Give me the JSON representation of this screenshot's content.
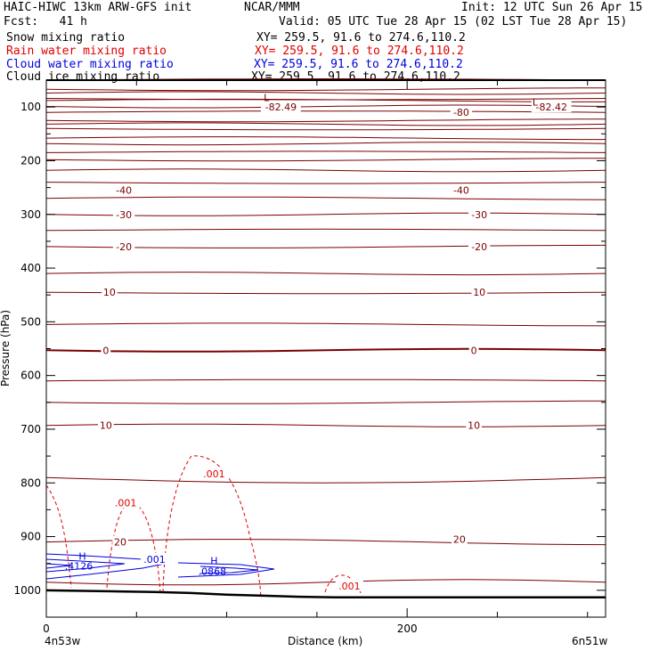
{
  "header": {
    "title_left": "HAIC-HIWC 13km ARW-GFS init",
    "org": "NCAR/MMM",
    "init": "Init: 12 UTC Sun 26 Apr 15",
    "fcst": "Fcst:   41 h",
    "valid": "Valid: 05 UTC Tue 28 Apr 15 (02 LST Tue 28 Apr 15)"
  },
  "fields": [
    {
      "name": "Snow mixing ratio",
      "xy": "XY= 259.5, 91.6 to 274.6,110.2",
      "color": "#000000"
    },
    {
      "name": "Rain water mixing ratio",
      "xy": "XY= 259.5, 91.6 to 274.6,110.2",
      "color": "#e00000"
    },
    {
      "name": "Cloud water mixing ratio",
      "xy": "XY= 259.5, 91.6 to 274.6,110.2",
      "color": "#0000e0"
    },
    {
      "name": "Cloud ice mixing ratio",
      "xy": "XY= 259.5, 91.6 to 274.6,110.2",
      "color": "#000000"
    }
  ],
  "colors": {
    "temperature": "#7a0000",
    "rain": "#e00000",
    "cloud_water": "#0000e0",
    "terrain": "#000000"
  },
  "chart_data": {
    "type": "line",
    "xlabel": "Distance (km)",
    "ylabel": "Pressure (hPa)",
    "xlim": [
      0,
      310
    ],
    "ylim": [
      1050,
      50
    ],
    "x_ticks": [
      0,
      200
    ],
    "y_ticks": [
      100,
      200,
      300,
      400,
      500,
      600,
      700,
      800,
      900,
      1000
    ],
    "left_endpoint": "4n53w",
    "right_endpoint": "6n51w",
    "isotherm_levels": [
      50,
      67,
      74,
      84,
      88,
      99,
      110,
      125,
      132,
      140,
      158,
      168,
      185,
      198,
      218,
      240,
      270,
      300,
      330,
      360,
      410,
      445,
      505,
      553,
      610,
      650,
      693,
      790,
      910,
      985
    ],
    "isotherm_labels": [
      {
        "text": "-82.49",
        "x": 130,
        "p": 100
      },
      {
        "text": "-80",
        "x": 230,
        "p": 110
      },
      {
        "text": "-82.42",
        "x": 280,
        "p": 100
      },
      {
        "text": "-40",
        "x": 43,
        "p": 255
      },
      {
        "text": "-40",
        "x": 230,
        "p": 255
      },
      {
        "text": "-30",
        "x": 43,
        "p": 300
      },
      {
        "text": "-30",
        "x": 240,
        "p": 300
      },
      {
        "text": "-20",
        "x": 43,
        "p": 360
      },
      {
        "text": "-20",
        "x": 240,
        "p": 360
      },
      {
        "text": "10",
        "x": 35,
        "p": 445
      },
      {
        "text": "10",
        "x": 240,
        "p": 445
      },
      {
        "text": "0",
        "x": 33,
        "p": 553
      },
      {
        "text": "0",
        "x": 237,
        "p": 553
      },
      {
        "text": "10",
        "x": 33,
        "p": 693
      },
      {
        "text": "10",
        "x": 237,
        "p": 693
      },
      {
        "text": "20",
        "x": 41,
        "p": 910
      },
      {
        "text": "20",
        "x": 229,
        "p": 905
      }
    ],
    "extrema_labels": [
      {
        "text": "L",
        "x": 122,
        "p": 82,
        "field": "temperature"
      },
      {
        "text": "L",
        "x": 271,
        "p": 91,
        "field": "temperature"
      },
      {
        "text": "H",
        "x": 20,
        "p": 936,
        "field": "cloud_water"
      },
      {
        "text": ".4126",
        "x": 18,
        "p": 955,
        "field": "cloud_water"
      },
      {
        "text": "H",
        "x": 93,
        "p": 945,
        "field": "cloud_water"
      },
      {
        "text": ".0868",
        "x": 92,
        "p": 965,
        "field": "cloud_water"
      }
    ],
    "rain_labels": [
      {
        "text": ".001",
        "x": 93,
        "p": 783
      },
      {
        "text": ".001",
        "x": 44,
        "p": 837
      },
      {
        "text": ".001",
        "x": 168,
        "p": 992
      }
    ],
    "cloud_labels": [
      {
        "text": ".001",
        "x": 60,
        "p": 942
      }
    ],
    "terrain": {
      "x": [
        0,
        20,
        40,
        60,
        80,
        100,
        120,
        140,
        160,
        200,
        250,
        310
      ],
      "p": [
        1000,
        1001,
        1002,
        1003,
        1005,
        1008,
        1010,
        1012,
        1013,
        1013,
        1013,
        1013
      ]
    }
  }
}
